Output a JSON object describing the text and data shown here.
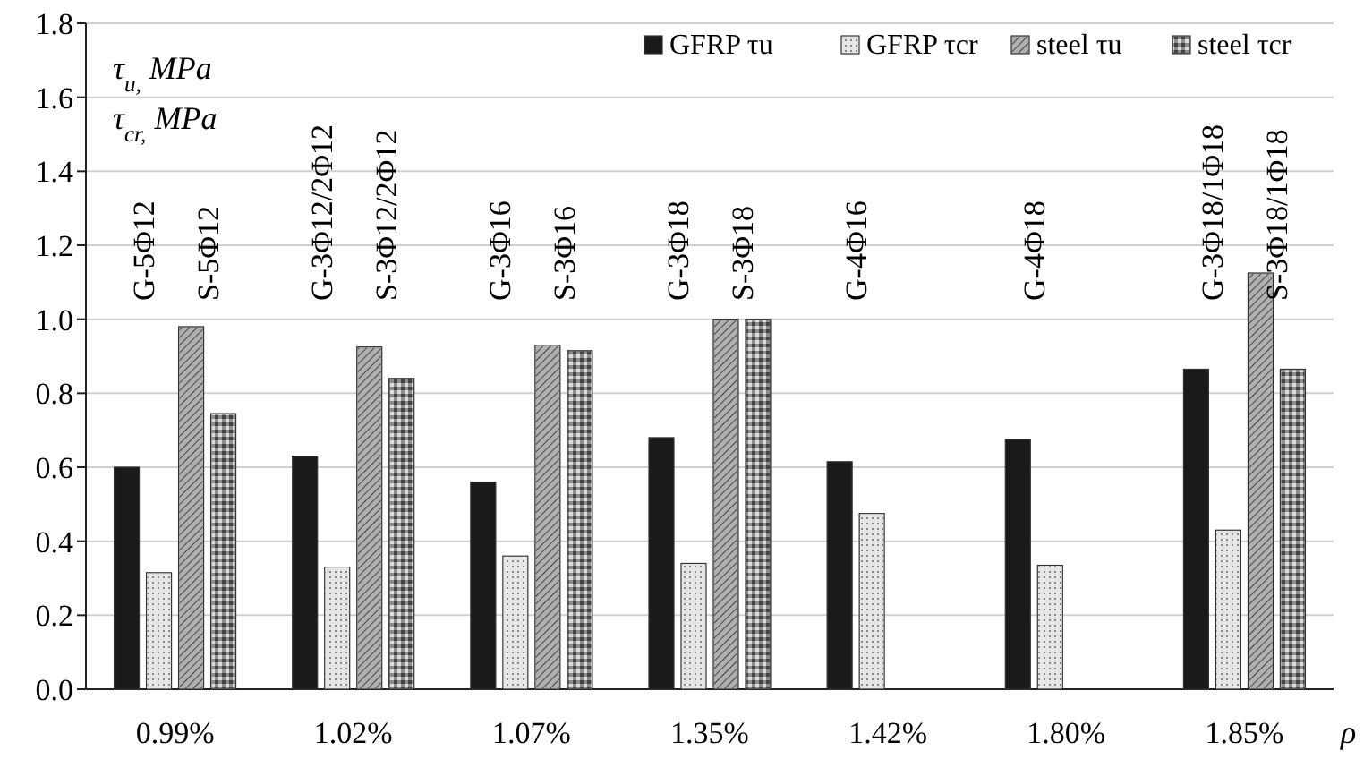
{
  "chart_data": {
    "type": "bar",
    "ylabel": "τ$_{u,}$ MPa\nτ$_{cr,}$ MPa",
    "xlabel": "ρ",
    "categories": [
      "0.99%",
      "1.02%",
      "1.07%",
      "1.35%",
      "1.42%",
      "1.80%",
      "1.85%"
    ],
    "series": [
      {
        "name": "GFRP τu",
        "color": "#1a1a1a",
        "values": [
          0.6,
          0.63,
          0.56,
          0.68,
          0.615,
          0.675,
          0.865
        ]
      },
      {
        "name": "GFRP τcr",
        "color": "#e6e6e6",
        "values": [
          0.315,
          0.33,
          0.36,
          0.34,
          0.475,
          0.335,
          0.43
        ]
      },
      {
        "name": "steel τu",
        "color": "#b0b0b0",
        "values": [
          0.98,
          0.925,
          0.93,
          1.0,
          null,
          null,
          1.125
        ]
      },
      {
        "name": "steel τcr",
        "color": "#8c8c8c",
        "values": [
          0.745,
          0.84,
          0.915,
          1.0,
          null,
          null,
          0.865
        ]
      }
    ],
    "ylim": [
      0,
      1.8
    ],
    "yticks": [
      {
        "value": 0,
        "label": "0.0"
      },
      0.2,
      0.4,
      0.6,
      0.8,
      {
        "value": 1,
        "label": "1.0"
      },
      1.2,
      1.4,
      1.6,
      1.8
    ],
    "grid": "y",
    "legend": "top right",
    "annotations": [
      "G-5Φ12",
      "S-5Φ12",
      "G-3Φ12/2Φ12",
      "S-3Φ12/2Φ12",
      "G-3Φ16",
      "S-3Φ16",
      "G-3Φ18",
      "S-3Φ18",
      "G-4Φ16",
      "G-4Φ18",
      "G-3Φ18/1Φ18",
      "S-3Φ18/1Φ18"
    ]
  }
}
